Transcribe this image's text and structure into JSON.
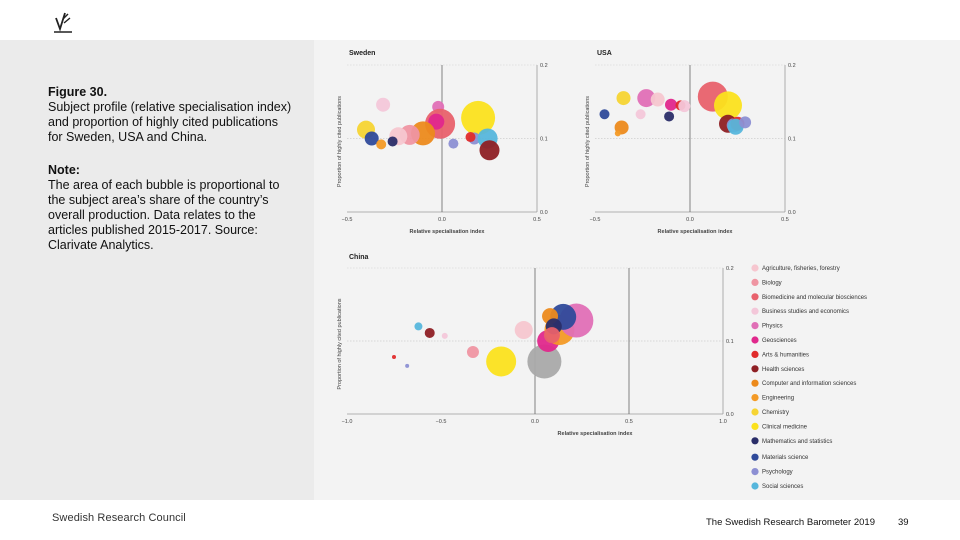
{
  "caption": {
    "title": "Figure 30.",
    "text": "Subject profile (relative specialisation index) and proportion of highly cited publications for Sweden, USA and China.",
    "note_heading": "Note:",
    "note_text": "The area of each bubble is proportional to the subject area’s share of the country’s overall production. Data relates to the articles published 2015-2017. Source: Clarivate Analytics."
  },
  "footer": {
    "org": "Swedish Research Council",
    "publication": "The Swedish Research Barometer 2019",
    "page": "39"
  },
  "colors": {
    "band": "#ebebeb",
    "figure_bg": "#f3f3f3",
    "axis": "#9a9a9a",
    "gridline": "#666666"
  },
  "chart_data": [
    {
      "id": "sweden",
      "type": "scatter",
      "title": "Sweden",
      "xlabel": "Relative specialisation index",
      "ylabel": "Proportion of highly cited publications",
      "xlim": [
        -0.5,
        0.5
      ],
      "ylim": [
        0.0,
        0.2
      ],
      "xticks": [
        "−0.5",
        "0.0",
        "0.5"
      ],
      "yticks": [
        "0.0",
        "0.1",
        "0.2"
      ],
      "points": [
        {
          "x": -0.31,
          "y": 0.146,
          "size": 7,
          "subject": "Business studies and economics"
        },
        {
          "x": -0.02,
          "y": 0.143,
          "size": 6,
          "subject": "Physics"
        },
        {
          "x": 0.19,
          "y": 0.128,
          "size": 17,
          "subject": "Clinical medicine"
        },
        {
          "x": -0.01,
          "y": 0.12,
          "size": 15,
          "subject": "Biomedicine and molecular biosciences"
        },
        {
          "x": -0.03,
          "y": 0.123,
          "size": 8,
          "subject": "Geosciences"
        },
        {
          "x": -0.4,
          "y": 0.112,
          "size": 9,
          "subject": "Chemistry"
        },
        {
          "x": -0.1,
          "y": 0.107,
          "size": 12,
          "subject": "Computer and information sciences"
        },
        {
          "x": -0.17,
          "y": 0.105,
          "size": 10,
          "subject": "Biology"
        },
        {
          "x": -0.23,
          "y": 0.103,
          "size": 9,
          "subject": "Agriculture, fisheries, forestry"
        },
        {
          "x": -0.37,
          "y": 0.1,
          "size": 7,
          "subject": "Materials science"
        },
        {
          "x": 0.17,
          "y": 0.1,
          "size": 6,
          "subject": "Psychology"
        },
        {
          "x": 0.24,
          "y": 0.1,
          "size": 10,
          "subject": "Social sciences"
        },
        {
          "x": 0.15,
          "y": 0.102,
          "size": 5,
          "subject": "Arts & humanities"
        },
        {
          "x": 0.25,
          "y": 0.084,
          "size": 10,
          "subject": "Health sciences"
        },
        {
          "x": -0.32,
          "y": 0.092,
          "size": 5,
          "subject": "Engineering"
        },
        {
          "x": -0.26,
          "y": 0.096,
          "size": 5,
          "subject": "Mathematics and statistics"
        },
        {
          "x": 0.06,
          "y": 0.093,
          "size": 5,
          "subject": "Psychology"
        }
      ]
    },
    {
      "id": "usa",
      "type": "scatter",
      "title": "USA",
      "xlabel": "Relative specialisation index",
      "ylabel": "Proportion of highly cited publications",
      "xlim": [
        -0.5,
        0.5
      ],
      "ylim": [
        0.0,
        0.2
      ],
      "xticks": [
        "−0.5",
        "0.0",
        "0.5"
      ],
      "yticks": [
        "0.0",
        "0.1",
        "0.2"
      ],
      "points": [
        {
          "x": -0.35,
          "y": 0.155,
          "size": 7,
          "subject": "Chemistry"
        },
        {
          "x": -0.23,
          "y": 0.155,
          "size": 9,
          "subject": "Physics"
        },
        {
          "x": -0.17,
          "y": 0.153,
          "size": 7,
          "subject": "Agriculture, fisheries, forestry"
        },
        {
          "x": 0.12,
          "y": 0.157,
          "size": 15,
          "subject": "Biomedicine and molecular biosciences"
        },
        {
          "x": 0.2,
          "y": 0.145,
          "size": 14,
          "subject": "Clinical medicine"
        },
        {
          "x": -0.1,
          "y": 0.146,
          "size": 6,
          "subject": "Geosciences"
        },
        {
          "x": -0.05,
          "y": 0.145,
          "size": 5,
          "subject": "Arts & humanities"
        },
        {
          "x": -0.03,
          "y": 0.144,
          "size": 6,
          "subject": "Business studies and economics"
        },
        {
          "x": -0.45,
          "y": 0.133,
          "size": 5,
          "subject": "Materials science"
        },
        {
          "x": -0.26,
          "y": 0.133,
          "size": 5,
          "subject": "Business studies and economics"
        },
        {
          "x": -0.11,
          "y": 0.13,
          "size": 5,
          "subject": "Mathematics and statistics"
        },
        {
          "x": -0.36,
          "y": 0.115,
          "size": 7,
          "subject": "Computer and information sciences"
        },
        {
          "x": -0.38,
          "y": 0.107,
          "size": 3,
          "subject": "Engineering"
        },
        {
          "x": 0.2,
          "y": 0.12,
          "size": 9,
          "subject": "Health sciences"
        },
        {
          "x": 0.23,
          "y": 0.118,
          "size": 7,
          "subject": "Psychology"
        },
        {
          "x": 0.25,
          "y": 0.12,
          "size": 7,
          "subject": "Arts & humanities"
        },
        {
          "x": 0.24,
          "y": 0.116,
          "size": 8,
          "subject": "Social sciences"
        },
        {
          "x": 0.29,
          "y": 0.122,
          "size": 6,
          "subject": "Psychology"
        }
      ]
    },
    {
      "id": "china",
      "type": "scatter",
      "title": "China",
      "xlabel": "Relative specialisation index",
      "ylabel": "Proportion of highly cited publications",
      "xlim": [
        -1.0,
        1.0
      ],
      "ylim": [
        0.0,
        0.2
      ],
      "xticks": [
        "−1.0",
        "−0.5",
        "0.0",
        "0.5",
        "1.0"
      ],
      "yticks": [
        "0.0",
        "0.1",
        "0.2"
      ],
      "points": [
        {
          "x": -0.62,
          "y": 0.12,
          "size": 4,
          "subject": "Social sciences"
        },
        {
          "x": -0.56,
          "y": 0.111,
          "size": 5,
          "subject": "Health sciences"
        },
        {
          "x": -0.48,
          "y": 0.107,
          "size": 3,
          "subject": "Business studies and economics"
        },
        {
          "x": -0.75,
          "y": 0.078,
          "size": 2,
          "subject": "Arts & humanities"
        },
        {
          "x": -0.68,
          "y": 0.066,
          "size": 2,
          "subject": "Psychology"
        },
        {
          "x": -0.33,
          "y": 0.085,
          "size": 6,
          "subject": "Biology"
        },
        {
          "x": -0.18,
          "y": 0.072,
          "size": 15,
          "subject": "Clinical medicine"
        },
        {
          "x": -0.06,
          "y": 0.115,
          "size": 9,
          "subject": "Agriculture, fisheries, forestry"
        },
        {
          "x": 0.05,
          "y": 0.072,
          "size": 17,
          "subject": "Chemistry"
        },
        {
          "x": 0.07,
          "y": 0.1,
          "size": 11,
          "subject": "Geosciences"
        },
        {
          "x": 0.13,
          "y": 0.115,
          "size": 15,
          "subject": "Engineering"
        },
        {
          "x": 0.22,
          "y": 0.128,
          "size": 17,
          "subject": "Physics"
        },
        {
          "x": 0.15,
          "y": 0.133,
          "size": 13,
          "subject": "Materials science"
        },
        {
          "x": 0.08,
          "y": 0.134,
          "size": 8,
          "subject": "Computer and information sciences"
        },
        {
          "x": 0.1,
          "y": 0.12,
          "size": 8,
          "subject": "Mathematics and statistics"
        },
        {
          "x": 0.09,
          "y": 0.108,
          "size": 8,
          "subject": "Biomedicine and molecular biosciences"
        }
      ]
    }
  ],
  "legend": {
    "placement": "right of China chart",
    "items": [
      {
        "label": "Agriculture, fisheries, forestry",
        "color": "#f6c6cf"
      },
      {
        "label": "Biology",
        "color": "#ef95a2"
      },
      {
        "label": "Biomedicine and molecular biosciences",
        "color": "#e8616c"
      },
      {
        "label": "Business studies and economics",
        "color": "#f3c7d9"
      },
      {
        "label": "Physics",
        "color": "#e06fb6"
      },
      {
        "label": "Geosciences",
        "color": "#e0288c"
      },
      {
        "label": "Arts & humanities",
        "color": "#e02b2b"
      },
      {
        "label": "Health sciences",
        "color": "#8e1f24"
      },
      {
        "label": "Computer and information sciences",
        "color": "#ec8a1c"
      },
      {
        "label": "Engineering",
        "color": "#f39a26"
      },
      {
        "label": "Chemistry",
        "color": "#f6d433"
      },
      {
        "label": "Clinical medicine",
        "color": "#fbe11d"
      },
      {
        "label": "Mathematics and statistics",
        "color": "#2a2d68"
      },
      {
        "label": "Materials science",
        "color": "#2f4a9a"
      },
      {
        "label": "Psychology",
        "color": "#8c8fd3"
      },
      {
        "label": "Social sciences",
        "color": "#56b6dc"
      }
    ]
  },
  "china_extra_color": "#a9a9a9"
}
